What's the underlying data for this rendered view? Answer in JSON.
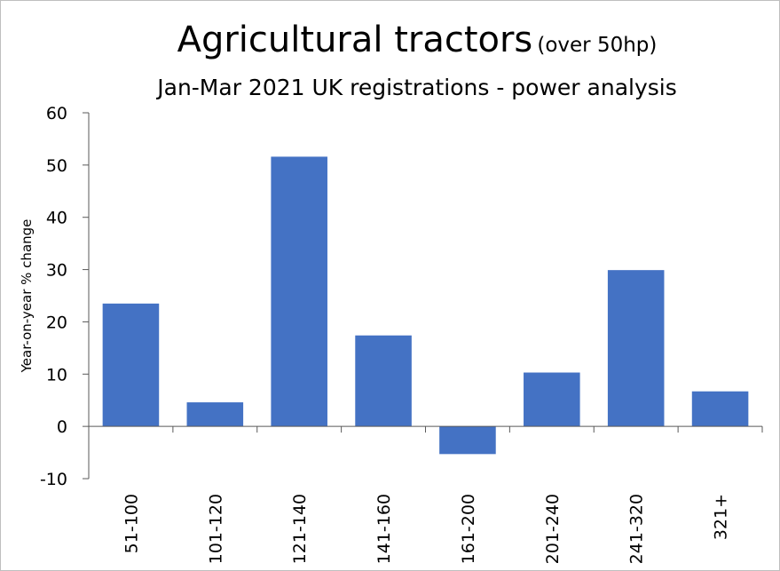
{
  "chart_data": {
    "type": "bar",
    "title": "Agricultural tractors",
    "title_suffix": "(over 50hp)",
    "subtitle": "Jan-Mar 2021 UK registrations - power analysis",
    "ylabel": "Year-on-year  % change",
    "xlabel": "",
    "categories": [
      "51-100",
      "101-120",
      "121-140",
      "141-160",
      "161-200",
      "201-240",
      "241-320",
      "321+"
    ],
    "values": [
      23.5,
      4.6,
      51.6,
      17.4,
      -5.3,
      10.3,
      29.9,
      6.7
    ],
    "ylim": [
      -10,
      60
    ],
    "yticks": [
      "-10",
      "0",
      "10",
      "20",
      "30",
      "40",
      "50",
      "60"
    ],
    "grid": false,
    "legend": "none",
    "bar_color": "#4472c4"
  }
}
